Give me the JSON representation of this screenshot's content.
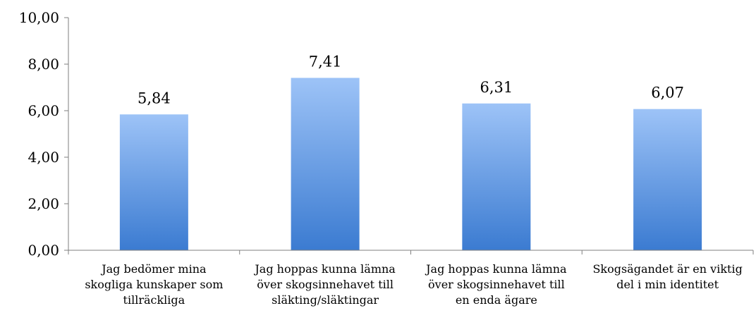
{
  "chart_data": {
    "type": "bar",
    "categories": [
      [
        "Jag bedömer mina",
        "skogliga kunskaper som",
        "tillräckliga"
      ],
      [
        "Jag hoppas kunna lämna",
        "över skogsinnehavet till",
        "släkting/släktingar"
      ],
      [
        "Jag hoppas kunna lämna",
        "över skogsinnehavet till",
        "en enda ägare"
      ],
      [
        "Skogsägandet är en viktig",
        "del i min identitet"
      ]
    ],
    "values": [
      5.84,
      7.41,
      6.31,
      6.07
    ],
    "data_labels": [
      "5,84",
      "7,41",
      "6,31",
      "6,07"
    ],
    "ylim": [
      0,
      10
    ],
    "yticks": [
      "0,00",
      "2,00",
      "4,00",
      "6,00",
      "8,00",
      "10,00"
    ],
    "ytick_values": [
      0,
      2,
      4,
      6,
      8,
      10
    ],
    "grid": false,
    "legend": "none",
    "colors": {
      "bar_top": "#9DC3F7",
      "bar_bottom": "#3B7BD1",
      "axis": "#7F7F7F"
    }
  }
}
